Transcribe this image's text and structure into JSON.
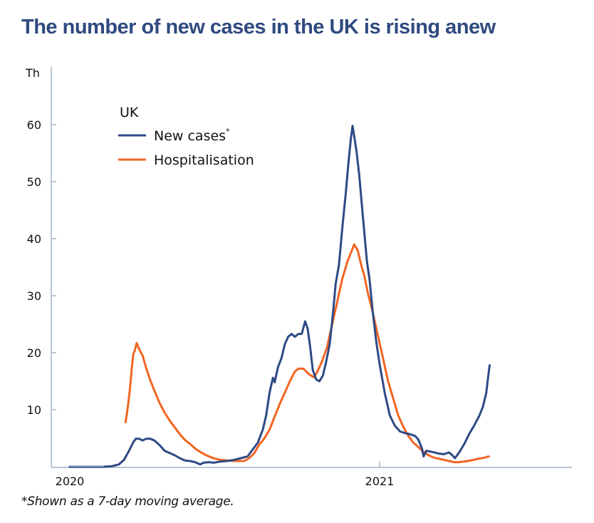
{
  "title": "The number of new cases in the UK is rising anew",
  "footnote": "*Shown as a 7-day moving average.",
  "colors": {
    "title": "#2f4a80",
    "new_cases": "#2e4a85",
    "hospitalisation": "#f26522",
    "axis": "#b8c6d4"
  },
  "chart_data": {
    "type": "line",
    "title": "The number of new cases in the UK is rising anew",
    "xlabel": "",
    "ylabel": "Th",
    "x_unit": "days since 2020-01-01",
    "xlim": [
      0,
      560
    ],
    "ylim": [
      0,
      60
    ],
    "yticks": [
      10,
      20,
      30,
      40,
      50,
      60
    ],
    "ytick_labels": [
      "10",
      "20",
      "30",
      "40",
      "50",
      "60"
    ],
    "y_unit_label": "Th",
    "xticks": [
      0,
      366
    ],
    "xtick_labels": [
      "2020",
      "2021"
    ],
    "grid": false,
    "legend": {
      "title": "UK",
      "placement": "top-left",
      "entries": [
        "New cases*",
        "Hospitalisation"
      ]
    },
    "series": [
      {
        "name": "New cases*",
        "color": "#2e4a85",
        "points": [
          [
            0,
            0
          ],
          [
            40,
            0
          ],
          [
            50,
            0.1
          ],
          [
            58,
            0.4
          ],
          [
            64,
            1.2
          ],
          [
            70,
            2.8
          ],
          [
            75,
            4.3
          ],
          [
            78,
            4.9
          ],
          [
            82,
            4.9
          ],
          [
            86,
            4.6
          ],
          [
            90,
            4.9
          ],
          [
            95,
            4.9
          ],
          [
            100,
            4.6
          ],
          [
            106,
            3.8
          ],
          [
            112,
            2.8
          ],
          [
            118,
            2.4
          ],
          [
            124,
            2.0
          ],
          [
            130,
            1.5
          ],
          [
            136,
            1.1
          ],
          [
            142,
            1.0
          ],
          [
            148,
            0.8
          ],
          [
            154,
            0.4
          ],
          [
            158,
            0.7
          ],
          [
            164,
            0.8
          ],
          [
            170,
            0.7
          ],
          [
            178,
            0.9
          ],
          [
            186,
            1.0
          ],
          [
            194,
            1.2
          ],
          [
            202,
            1.5
          ],
          [
            210,
            1.8
          ],
          [
            216,
            3.0
          ],
          [
            222,
            4.2
          ],
          [
            228,
            6.5
          ],
          [
            232,
            9.0
          ],
          [
            236,
            13.0
          ],
          [
            240,
            15.6
          ],
          [
            242,
            14.8
          ],
          [
            246,
            17.5
          ],
          [
            250,
            19.0
          ],
          [
            254,
            21.5
          ],
          [
            258,
            22.8
          ],
          [
            262,
            23.3
          ],
          [
            266,
            22.8
          ],
          [
            270,
            23.3
          ],
          [
            274,
            23.3
          ],
          [
            278,
            25.5
          ],
          [
            281,
            24.2
          ],
          [
            284,
            21.0
          ],
          [
            287,
            17.0
          ],
          [
            291,
            15.3
          ],
          [
            295,
            15.0
          ],
          [
            299,
            16.0
          ],
          [
            303,
            18.5
          ],
          [
            307,
            21.5
          ],
          [
            311,
            27.0
          ],
          [
            314,
            32.0
          ],
          [
            318,
            35.5
          ],
          [
            322,
            42.0
          ],
          [
            326,
            48.0
          ],
          [
            329,
            53.0
          ],
          [
            332,
            57.5
          ],
          [
            334,
            59.8
          ],
          [
            336,
            58.0
          ],
          [
            339,
            55.0
          ],
          [
            342,
            51.0
          ],
          [
            345,
            46.0
          ],
          [
            348,
            41.0
          ],
          [
            351,
            36.0
          ],
          [
            354,
            33.0
          ],
          [
            358,
            27.0
          ],
          [
            362,
            22.0
          ],
          [
            366,
            18.0
          ],
          [
            372,
            13.0
          ],
          [
            378,
            9.0
          ],
          [
            384,
            7.2
          ],
          [
            390,
            6.2
          ],
          [
            396,
            5.9
          ],
          [
            402,
            5.7
          ],
          [
            408,
            5.4
          ],
          [
            412,
            4.7
          ],
          [
            416,
            3.2
          ],
          [
            418,
            1.8
          ],
          [
            421,
            2.8
          ],
          [
            428,
            2.6
          ],
          [
            436,
            2.3
          ],
          [
            442,
            2.2
          ],
          [
            448,
            2.5
          ],
          [
            452,
            2.0
          ],
          [
            455,
            1.5
          ],
          [
            460,
            2.5
          ],
          [
            466,
            4.0
          ],
          [
            472,
            5.8
          ],
          [
            478,
            7.3
          ],
          [
            484,
            9.0
          ],
          [
            488,
            10.5
          ],
          [
            492,
            13.0
          ],
          [
            494,
            15.5
          ],
          [
            496,
            17.8
          ]
        ]
      },
      {
        "name": "Hospitalisation",
        "color": "#f26522",
        "points": [
          [
            66,
            7.8
          ],
          [
            69,
            11.0
          ],
          [
            71,
            13.6
          ],
          [
            73,
            17.0
          ],
          [
            75,
            19.7
          ],
          [
            77,
            20.5
          ],
          [
            79,
            21.7
          ],
          [
            82,
            20.6
          ],
          [
            86,
            19.5
          ],
          [
            90,
            17.4
          ],
          [
            95,
            15.2
          ],
          [
            100,
            13.3
          ],
          [
            106,
            11.2
          ],
          [
            112,
            9.5
          ],
          [
            118,
            8.1
          ],
          [
            124,
            6.9
          ],
          [
            130,
            5.7
          ],
          [
            136,
            4.7
          ],
          [
            142,
            4.0
          ],
          [
            148,
            3.2
          ],
          [
            154,
            2.6
          ],
          [
            160,
            2.1
          ],
          [
            166,
            1.7
          ],
          [
            172,
            1.4
          ],
          [
            178,
            1.2
          ],
          [
            186,
            1.1
          ],
          [
            194,
            1.0
          ],
          [
            200,
            1.0
          ],
          [
            206,
            1.0
          ],
          [
            212,
            1.5
          ],
          [
            218,
            2.4
          ],
          [
            224,
            3.9
          ],
          [
            230,
            5.0
          ],
          [
            236,
            6.5
          ],
          [
            242,
            8.8
          ],
          [
            248,
            11.0
          ],
          [
            254,
            13.0
          ],
          [
            260,
            15.0
          ],
          [
            266,
            16.7
          ],
          [
            270,
            17.2
          ],
          [
            276,
            17.2
          ],
          [
            282,
            16.3
          ],
          [
            288,
            15.7
          ],
          [
            292,
            16.5
          ],
          [
            298,
            18.5
          ],
          [
            304,
            21.0
          ],
          [
            310,
            25.0
          ],
          [
            316,
            29.0
          ],
          [
            322,
            33.0
          ],
          [
            328,
            36.0
          ],
          [
            332,
            37.5
          ],
          [
            336,
            39.0
          ],
          [
            340,
            38.0
          ],
          [
            344,
            35.5
          ],
          [
            348,
            33.5
          ],
          [
            352,
            30.5
          ],
          [
            358,
            27.0
          ],
          [
            364,
            23.0
          ],
          [
            370,
            19.0
          ],
          [
            376,
            15.0
          ],
          [
            382,
            12.0
          ],
          [
            388,
            9.0
          ],
          [
            394,
            7.0
          ],
          [
            400,
            5.4
          ],
          [
            406,
            4.2
          ],
          [
            412,
            3.4
          ],
          [
            418,
            2.6
          ],
          [
            424,
            2.0
          ],
          [
            430,
            1.6
          ],
          [
            436,
            1.4
          ],
          [
            442,
            1.2
          ],
          [
            448,
            1.0
          ],
          [
            454,
            0.8
          ],
          [
            460,
            0.8
          ],
          [
            470,
            1.0
          ],
          [
            480,
            1.3
          ],
          [
            490,
            1.6
          ],
          [
            495,
            1.8
          ]
        ]
      }
    ]
  }
}
